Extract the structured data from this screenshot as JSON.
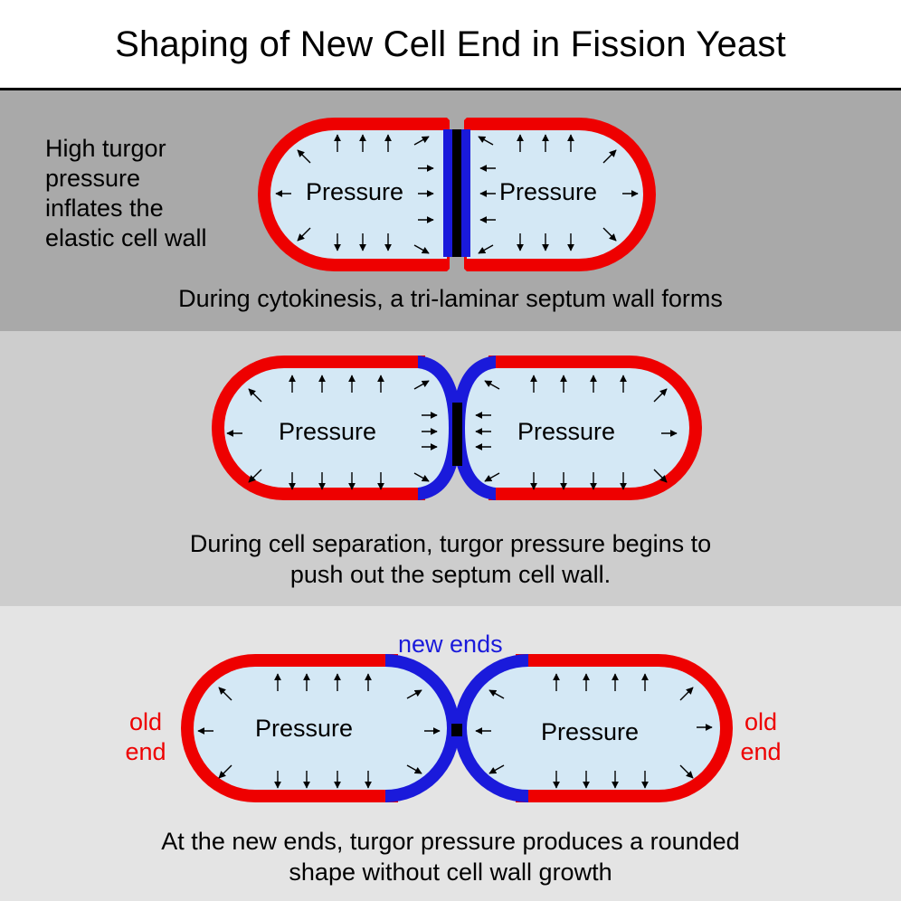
{
  "title": "Shaping of New Cell End in Fission Yeast",
  "colors": {
    "old_wall": "#ee0000",
    "new_wall": "#1a1adb",
    "septum": "#000000",
    "cytoplasm": "#d4e8f5",
    "panel1_bg": "#a9a9a9",
    "panel2_bg": "#cdcdcd",
    "panel3_bg": "#e4e4e4"
  },
  "panel1": {
    "side_label": [
      "High turgor",
      "pressure",
      "inflates the",
      "elastic cell wall"
    ],
    "left_cell_label": "Pressure",
    "right_cell_label": "Pressure",
    "caption": "During cytokinesis, a tri-laminar septum wall forms"
  },
  "panel2": {
    "left_cell_label": "Pressure",
    "right_cell_label": "Pressure",
    "caption": [
      "During cell separation, turgor pressure begins to",
      "push out the septum cell wall."
    ]
  },
  "panel3": {
    "left_cell_label": "Pressure",
    "right_cell_label": "Pressure",
    "new_ends_label": "new ends",
    "old_end_left": [
      "old",
      "end"
    ],
    "old_end_right": [
      "old",
      "end"
    ],
    "caption": [
      "At the new ends, turgor pressure  produces a rounded",
      "shape without cell wall growth"
    ]
  },
  "icons": [
    "pressure-arrow-icon"
  ]
}
